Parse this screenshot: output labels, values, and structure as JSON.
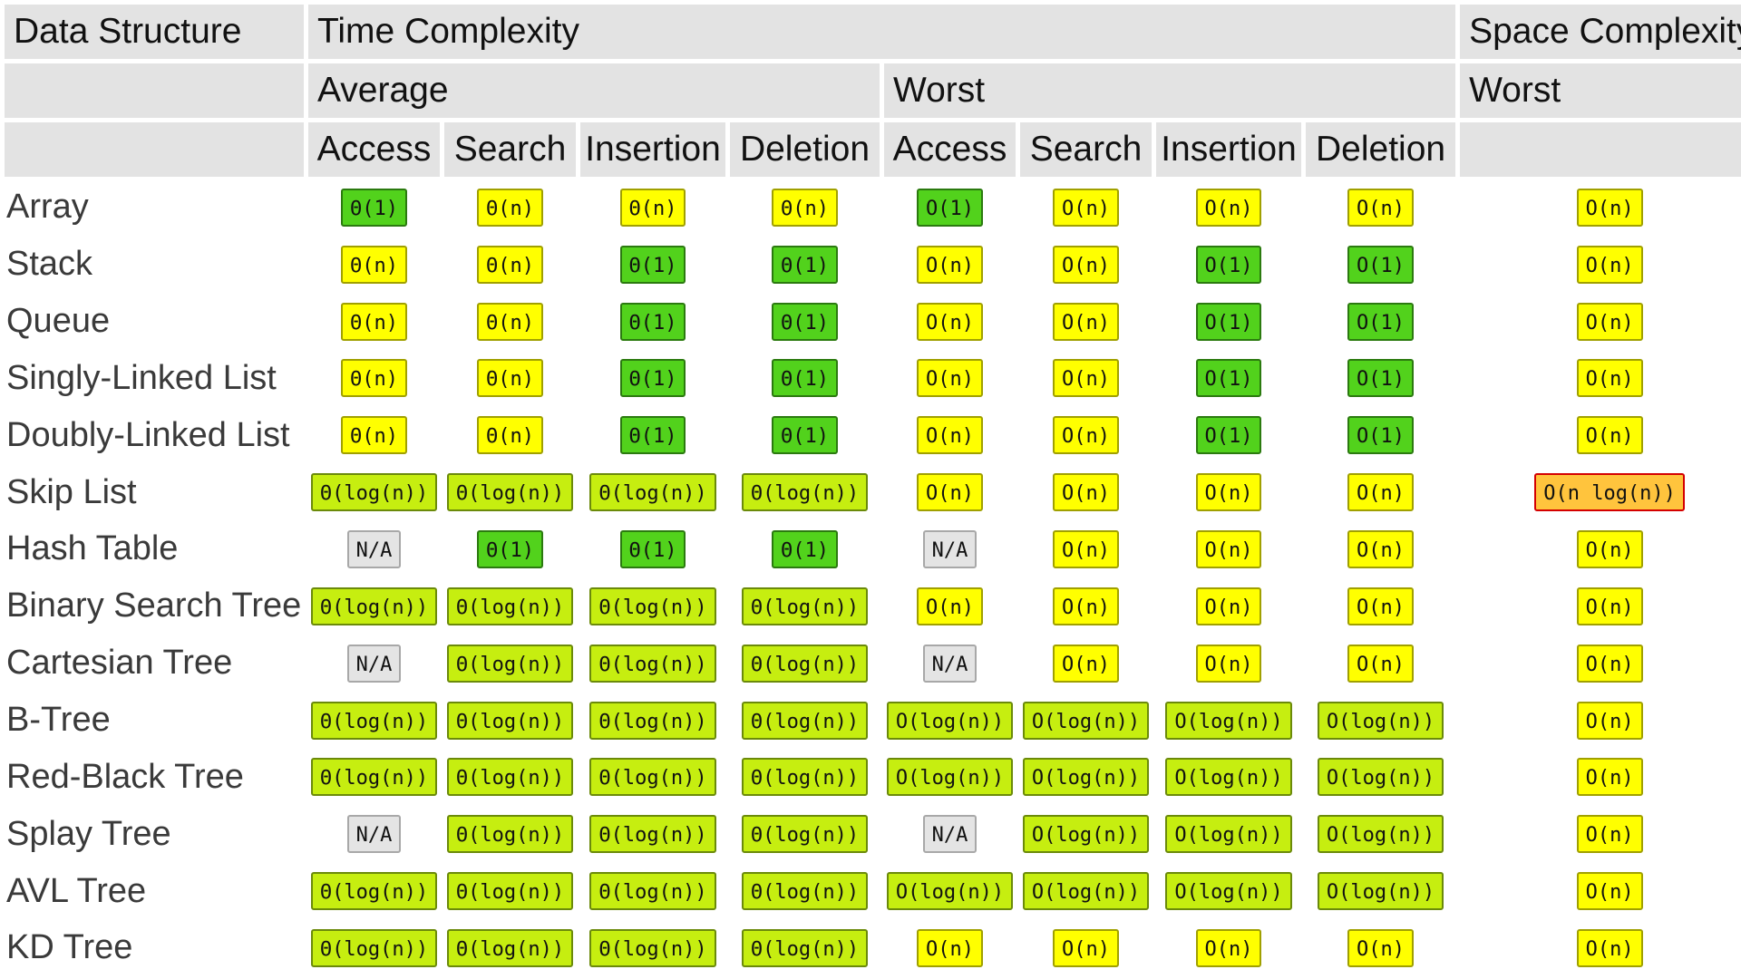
{
  "header": {
    "data_structure": "Data Structure",
    "time_complexity": "Time Complexity",
    "space_complexity": "Space Complexity",
    "average": "Average",
    "worst": "Worst",
    "space_worst": "Worst",
    "ops": [
      "Access",
      "Search",
      "Insertion",
      "Deletion",
      "Access",
      "Search",
      "Insertion",
      "Deletion"
    ]
  },
  "colors": {
    "green": "#52d21c",
    "lgreen": "#c6ee10",
    "yellow": "#ffff00",
    "orange": "#ffc43d",
    "gray": "#e4e4e4"
  },
  "rows": [
    {
      "name": "Array",
      "cells": [
        {
          "text": "Θ(1)",
          "color": "green"
        },
        {
          "text": "Θ(n)",
          "color": "yellow"
        },
        {
          "text": "Θ(n)",
          "color": "yellow"
        },
        {
          "text": "Θ(n)",
          "color": "yellow"
        },
        {
          "text": "O(1)",
          "color": "green"
        },
        {
          "text": "O(n)",
          "color": "yellow"
        },
        {
          "text": "O(n)",
          "color": "yellow"
        },
        {
          "text": "O(n)",
          "color": "yellow"
        },
        {
          "text": "O(n)",
          "color": "yellow"
        }
      ]
    },
    {
      "name": "Stack",
      "cells": [
        {
          "text": "Θ(n)",
          "color": "yellow"
        },
        {
          "text": "Θ(n)",
          "color": "yellow"
        },
        {
          "text": "Θ(1)",
          "color": "green"
        },
        {
          "text": "Θ(1)",
          "color": "green"
        },
        {
          "text": "O(n)",
          "color": "yellow"
        },
        {
          "text": "O(n)",
          "color": "yellow"
        },
        {
          "text": "O(1)",
          "color": "green"
        },
        {
          "text": "O(1)",
          "color": "green"
        },
        {
          "text": "O(n)",
          "color": "yellow"
        }
      ]
    },
    {
      "name": "Queue",
      "cells": [
        {
          "text": "Θ(n)",
          "color": "yellow"
        },
        {
          "text": "Θ(n)",
          "color": "yellow"
        },
        {
          "text": "Θ(1)",
          "color": "green"
        },
        {
          "text": "Θ(1)",
          "color": "green"
        },
        {
          "text": "O(n)",
          "color": "yellow"
        },
        {
          "text": "O(n)",
          "color": "yellow"
        },
        {
          "text": "O(1)",
          "color": "green"
        },
        {
          "text": "O(1)",
          "color": "green"
        },
        {
          "text": "O(n)",
          "color": "yellow"
        }
      ]
    },
    {
      "name": "Singly-Linked List",
      "cells": [
        {
          "text": "Θ(n)",
          "color": "yellow"
        },
        {
          "text": "Θ(n)",
          "color": "yellow"
        },
        {
          "text": "Θ(1)",
          "color": "green"
        },
        {
          "text": "Θ(1)",
          "color": "green"
        },
        {
          "text": "O(n)",
          "color": "yellow"
        },
        {
          "text": "O(n)",
          "color": "yellow"
        },
        {
          "text": "O(1)",
          "color": "green"
        },
        {
          "text": "O(1)",
          "color": "green"
        },
        {
          "text": "O(n)",
          "color": "yellow"
        }
      ]
    },
    {
      "name": "Doubly-Linked List",
      "cells": [
        {
          "text": "Θ(n)",
          "color": "yellow"
        },
        {
          "text": "Θ(n)",
          "color": "yellow"
        },
        {
          "text": "Θ(1)",
          "color": "green"
        },
        {
          "text": "Θ(1)",
          "color": "green"
        },
        {
          "text": "O(n)",
          "color": "yellow"
        },
        {
          "text": "O(n)",
          "color": "yellow"
        },
        {
          "text": "O(1)",
          "color": "green"
        },
        {
          "text": "O(1)",
          "color": "green"
        },
        {
          "text": "O(n)",
          "color": "yellow"
        }
      ]
    },
    {
      "name": "Skip List",
      "cells": [
        {
          "text": "Θ(log(n))",
          "color": "lgreen"
        },
        {
          "text": "Θ(log(n))",
          "color": "lgreen"
        },
        {
          "text": "Θ(log(n))",
          "color": "lgreen"
        },
        {
          "text": "Θ(log(n))",
          "color": "lgreen"
        },
        {
          "text": "O(n)",
          "color": "yellow"
        },
        {
          "text": "O(n)",
          "color": "yellow"
        },
        {
          "text": "O(n)",
          "color": "yellow"
        },
        {
          "text": "O(n)",
          "color": "yellow"
        },
        {
          "text": "O(n log(n))",
          "color": "orange"
        }
      ]
    },
    {
      "name": "Hash Table",
      "cells": [
        {
          "text": "N/A",
          "color": "gray"
        },
        {
          "text": "Θ(1)",
          "color": "green"
        },
        {
          "text": "Θ(1)",
          "color": "green"
        },
        {
          "text": "Θ(1)",
          "color": "green"
        },
        {
          "text": "N/A",
          "color": "gray"
        },
        {
          "text": "O(n)",
          "color": "yellow"
        },
        {
          "text": "O(n)",
          "color": "yellow"
        },
        {
          "text": "O(n)",
          "color": "yellow"
        },
        {
          "text": "O(n)",
          "color": "yellow"
        }
      ]
    },
    {
      "name": "Binary Search Tree",
      "cells": [
        {
          "text": "Θ(log(n))",
          "color": "lgreen"
        },
        {
          "text": "Θ(log(n))",
          "color": "lgreen"
        },
        {
          "text": "Θ(log(n))",
          "color": "lgreen"
        },
        {
          "text": "Θ(log(n))",
          "color": "lgreen"
        },
        {
          "text": "O(n)",
          "color": "yellow"
        },
        {
          "text": "O(n)",
          "color": "yellow"
        },
        {
          "text": "O(n)",
          "color": "yellow"
        },
        {
          "text": "O(n)",
          "color": "yellow"
        },
        {
          "text": "O(n)",
          "color": "yellow"
        }
      ]
    },
    {
      "name": "Cartesian Tree",
      "cells": [
        {
          "text": "N/A",
          "color": "gray"
        },
        {
          "text": "Θ(log(n))",
          "color": "lgreen"
        },
        {
          "text": "Θ(log(n))",
          "color": "lgreen"
        },
        {
          "text": "Θ(log(n))",
          "color": "lgreen"
        },
        {
          "text": "N/A",
          "color": "gray"
        },
        {
          "text": "O(n)",
          "color": "yellow"
        },
        {
          "text": "O(n)",
          "color": "yellow"
        },
        {
          "text": "O(n)",
          "color": "yellow"
        },
        {
          "text": "O(n)",
          "color": "yellow"
        }
      ]
    },
    {
      "name": "B-Tree",
      "cells": [
        {
          "text": "Θ(log(n))",
          "color": "lgreen"
        },
        {
          "text": "Θ(log(n))",
          "color": "lgreen"
        },
        {
          "text": "Θ(log(n))",
          "color": "lgreen"
        },
        {
          "text": "Θ(log(n))",
          "color": "lgreen"
        },
        {
          "text": "O(log(n))",
          "color": "lgreen"
        },
        {
          "text": "O(log(n))",
          "color": "lgreen"
        },
        {
          "text": "O(log(n))",
          "color": "lgreen"
        },
        {
          "text": "O(log(n))",
          "color": "lgreen"
        },
        {
          "text": "O(n)",
          "color": "yellow"
        }
      ]
    },
    {
      "name": "Red-Black Tree",
      "cells": [
        {
          "text": "Θ(log(n))",
          "color": "lgreen"
        },
        {
          "text": "Θ(log(n))",
          "color": "lgreen"
        },
        {
          "text": "Θ(log(n))",
          "color": "lgreen"
        },
        {
          "text": "Θ(log(n))",
          "color": "lgreen"
        },
        {
          "text": "O(log(n))",
          "color": "lgreen"
        },
        {
          "text": "O(log(n))",
          "color": "lgreen"
        },
        {
          "text": "O(log(n))",
          "color": "lgreen"
        },
        {
          "text": "O(log(n))",
          "color": "lgreen"
        },
        {
          "text": "O(n)",
          "color": "yellow"
        }
      ]
    },
    {
      "name": "Splay Tree",
      "cells": [
        {
          "text": "N/A",
          "color": "gray"
        },
        {
          "text": "Θ(log(n))",
          "color": "lgreen"
        },
        {
          "text": "Θ(log(n))",
          "color": "lgreen"
        },
        {
          "text": "Θ(log(n))",
          "color": "lgreen"
        },
        {
          "text": "N/A",
          "color": "gray"
        },
        {
          "text": "O(log(n))",
          "color": "lgreen"
        },
        {
          "text": "O(log(n))",
          "color": "lgreen"
        },
        {
          "text": "O(log(n))",
          "color": "lgreen"
        },
        {
          "text": "O(n)",
          "color": "yellow"
        }
      ]
    },
    {
      "name": "AVL Tree",
      "cells": [
        {
          "text": "Θ(log(n))",
          "color": "lgreen"
        },
        {
          "text": "Θ(log(n))",
          "color": "lgreen"
        },
        {
          "text": "Θ(log(n))",
          "color": "lgreen"
        },
        {
          "text": "Θ(log(n))",
          "color": "lgreen"
        },
        {
          "text": "O(log(n))",
          "color": "lgreen"
        },
        {
          "text": "O(log(n))",
          "color": "lgreen"
        },
        {
          "text": "O(log(n))",
          "color": "lgreen"
        },
        {
          "text": "O(log(n))",
          "color": "lgreen"
        },
        {
          "text": "O(n)",
          "color": "yellow"
        }
      ]
    },
    {
      "name": "KD Tree",
      "cells": [
        {
          "text": "Θ(log(n))",
          "color": "lgreen"
        },
        {
          "text": "Θ(log(n))",
          "color": "lgreen"
        },
        {
          "text": "Θ(log(n))",
          "color": "lgreen"
        },
        {
          "text": "Θ(log(n))",
          "color": "lgreen"
        },
        {
          "text": "O(n)",
          "color": "yellow"
        },
        {
          "text": "O(n)",
          "color": "yellow"
        },
        {
          "text": "O(n)",
          "color": "yellow"
        },
        {
          "text": "O(n)",
          "color": "yellow"
        },
        {
          "text": "O(n)",
          "color": "yellow"
        }
      ]
    }
  ]
}
